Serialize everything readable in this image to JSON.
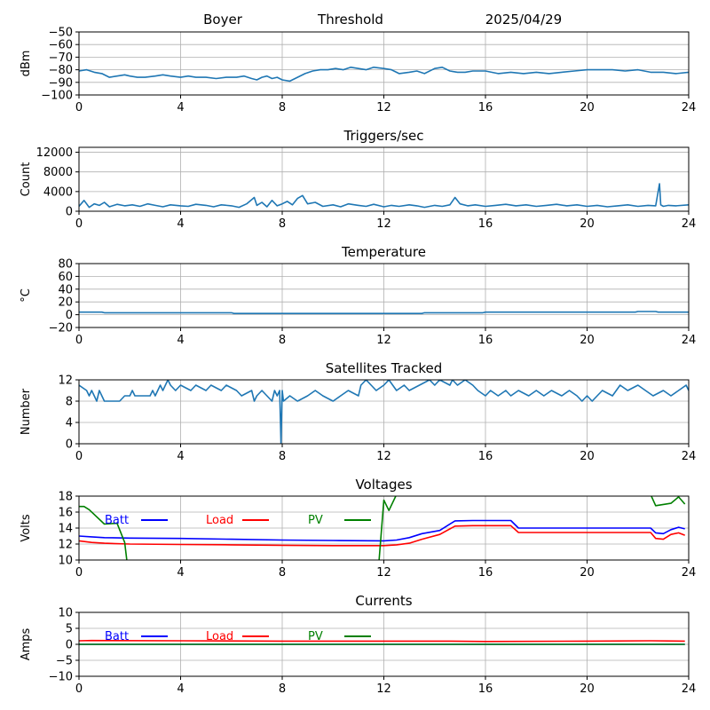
{
  "header": {
    "station": "Boyer",
    "mode": "Threshold",
    "date": "2025/04/29"
  },
  "chart_data": [
    {
      "type": "line",
      "title": "",
      "ylabel": "dBm",
      "ylim": [
        -100,
        -50
      ],
      "yticks": [
        -100,
        -90,
        -80,
        -70,
        -60,
        -50
      ],
      "xlim": [
        0,
        24
      ],
      "xticks": [
        0,
        4,
        8,
        12,
        16,
        20,
        24
      ],
      "grid": true,
      "series": [
        {
          "color": "#1f77b4",
          "x": [
            0,
            0.3,
            0.6,
            0.9,
            1.2,
            1.5,
            1.8,
            2.0,
            2.3,
            2.6,
            3.0,
            3.3,
            3.6,
            4.0,
            4.3,
            4.6,
            5.0,
            5.4,
            5.8,
            6.2,
            6.5,
            6.8,
            7.0,
            7.2,
            7.4,
            7.6,
            7.8,
            8.0,
            8.3,
            8.6,
            8.9,
            9.2,
            9.5,
            9.8,
            10.1,
            10.4,
            10.7,
            11.0,
            11.3,
            11.6,
            12.0,
            12.3,
            12.6,
            13.0,
            13.3,
            13.6,
            14.0,
            14.3,
            14.6,
            14.9,
            15.2,
            15.5,
            16.0,
            16.5,
            17.0,
            17.5,
            18.0,
            18.5,
            19.0,
            19.5,
            20.0,
            20.5,
            21.0,
            21.5,
            22.0,
            22.5,
            23.0,
            23.5,
            24.0
          ],
          "values": [
            -81,
            -80,
            -82,
            -83,
            -86,
            -85,
            -84,
            -85,
            -86,
            -86,
            -85,
            -84,
            -85,
            -86,
            -85,
            -86,
            -86,
            -87,
            -86,
            -86,
            -85,
            -87,
            -88,
            -86,
            -85,
            -87,
            -86,
            -88,
            -89,
            -86,
            -83,
            -81,
            -80,
            -80,
            -79,
            -80,
            -78,
            -79,
            -80,
            -78,
            -79,
            -80,
            -83,
            -82,
            -81,
            -83,
            -79,
            -78,
            -81,
            -82,
            -82,
            -81,
            -81,
            -83,
            -82,
            -83,
            -82,
            -83,
            -82,
            -81,
            -80,
            -80,
            -80,
            -81,
            -80,
            -82,
            -82,
            -83,
            -82
          ]
        }
      ]
    },
    {
      "type": "line",
      "title": "Triggers/sec",
      "ylabel": "Count",
      "ylim": [
        0,
        13000
      ],
      "yticks": [
        0,
        4000,
        8000,
        12000
      ],
      "xlim": [
        0,
        24
      ],
      "xticks": [
        0,
        4,
        8,
        12,
        16,
        20,
        24
      ],
      "grid": true,
      "series": [
        {
          "color": "#1f77b4",
          "x": [
            0,
            0.2,
            0.4,
            0.6,
            0.8,
            1.0,
            1.2,
            1.5,
            1.8,
            2.1,
            2.4,
            2.7,
            3.0,
            3.3,
            3.6,
            4.0,
            4.3,
            4.6,
            5.0,
            5.3,
            5.6,
            6.0,
            6.3,
            6.6,
            6.9,
            7.0,
            7.2,
            7.4,
            7.6,
            7.8,
            8.0,
            8.2,
            8.4,
            8.6,
            8.8,
            9.0,
            9.3,
            9.6,
            10.0,
            10.3,
            10.6,
            11.0,
            11.3,
            11.6,
            12.0,
            12.3,
            12.6,
            13.0,
            13.3,
            13.6,
            14.0,
            14.3,
            14.6,
            14.8,
            15.0,
            15.3,
            15.6,
            16.0,
            16.4,
            16.8,
            17.2,
            17.6,
            18.0,
            18.4,
            18.8,
            19.2,
            19.6,
            20.0,
            20.4,
            20.8,
            21.2,
            21.6,
            22.0,
            22.4,
            22.7,
            22.85,
            22.9,
            23.0,
            23.2,
            23.5,
            24.0
          ],
          "values": [
            1000,
            2200,
            800,
            1500,
            1200,
            1800,
            900,
            1400,
            1100,
            1300,
            1000,
            1500,
            1200,
            900,
            1300,
            1100,
            1000,
            1400,
            1200,
            900,
            1300,
            1100,
            800,
            1500,
            2800,
            1200,
            1800,
            900,
            2200,
            1100,
            1500,
            2000,
            1300,
            2600,
            3200,
            1500,
            1800,
            1000,
            1300,
            900,
            1500,
            1200,
            1000,
            1400,
            900,
            1200,
            1000,
            1300,
            1100,
            800,
            1200,
            1000,
            1300,
            2800,
            1500,
            1100,
            1300,
            1000,
            1200,
            1400,
            1100,
            1300,
            1000,
            1200,
            1400,
            1100,
            1300,
            1000,
            1200,
            900,
            1100,
            1300,
            1000,
            1200,
            1100,
            5600,
            1300,
            1000,
            1200,
            1100,
            1300
          ]
        }
      ]
    },
    {
      "type": "line",
      "title": "Temperature",
      "ylabel": "°C",
      "ylim": [
        -20,
        80
      ],
      "yticks": [
        -20,
        0,
        20,
        40,
        60,
        80
      ],
      "xlim": [
        0,
        24
      ],
      "xticks": [
        0,
        4,
        8,
        12,
        16,
        20,
        24
      ],
      "grid": true,
      "series": [
        {
          "color": "#1f77b4",
          "x": [
            0,
            0.9,
            1.0,
            6.0,
            6.1,
            13.5,
            13.6,
            15.9,
            16.0,
            21.9,
            22.0,
            22.7,
            22.8,
            24.0
          ],
          "values": [
            4,
            4,
            3,
            3,
            2,
            2,
            3,
            3,
            4,
            4,
            5,
            5,
            4,
            4
          ]
        }
      ]
    },
    {
      "type": "line",
      "title": "Satellites Tracked",
      "ylabel": "Number",
      "ylim": [
        0,
        12
      ],
      "yticks": [
        0,
        4,
        8,
        12
      ],
      "xlim": [
        0,
        24
      ],
      "xticks": [
        0,
        4,
        8,
        12,
        16,
        20,
        24
      ],
      "grid": true,
      "series": [
        {
          "color": "#1f77b4",
          "x": [
            0,
            0.3,
            0.4,
            0.5,
            0.6,
            0.7,
            0.8,
            1.0,
            1.4,
            1.6,
            1.8,
            2.0,
            2.1,
            2.2,
            2.8,
            2.9,
            3.0,
            3.2,
            3.3,
            3.5,
            3.6,
            3.8,
            4.0,
            4.4,
            4.6,
            5.0,
            5.2,
            5.6,
            5.8,
            6.2,
            6.4,
            6.8,
            6.9,
            7.0,
            7.2,
            7.4,
            7.6,
            7.7,
            7.8,
            7.9,
            7.95,
            8.0,
            8.05,
            8.3,
            8.6,
            9.0,
            9.3,
            9.6,
            10.0,
            10.3,
            10.6,
            11.0,
            11.1,
            11.3,
            11.5,
            11.7,
            12.0,
            12.2,
            12.5,
            12.8,
            13.0,
            13.4,
            13.8,
            14.0,
            14.2,
            14.6,
            14.7,
            14.9,
            15.2,
            15.5,
            15.7,
            16.0,
            16.2,
            16.5,
            16.8,
            17.0,
            17.3,
            17.7,
            18.0,
            18.3,
            18.6,
            19.0,
            19.3,
            19.6,
            19.8,
            20.0,
            20.2,
            20.4,
            20.6,
            21.0,
            21.3,
            21.6,
            22.0,
            22.3,
            22.6,
            23.0,
            23.3,
            23.6,
            23.9,
            24.0
          ],
          "values": [
            11,
            10,
            9,
            10,
            9,
            8,
            10,
            8,
            8,
            8,
            9,
            9,
            10,
            9,
            9,
            10,
            9,
            11,
            10,
            12,
            11,
            10,
            11,
            10,
            11,
            10,
            11,
            10,
            11,
            10,
            9,
            10,
            8,
            9,
            10,
            9,
            8,
            10,
            9,
            10,
            0,
            10,
            8,
            9,
            8,
            9,
            10,
            9,
            8,
            9,
            10,
            9,
            11,
            12,
            11,
            10,
            11,
            12,
            10,
            11,
            10,
            11,
            12,
            11,
            12,
            11,
            12,
            11,
            12,
            11,
            10,
            9,
            10,
            9,
            10,
            9,
            10,
            9,
            10,
            9,
            10,
            9,
            10,
            9,
            8,
            9,
            8,
            9,
            10,
            9,
            11,
            10,
            11,
            10,
            9,
            10,
            9,
            10,
            11,
            10
          ]
        }
      ]
    },
    {
      "type": "line",
      "title": "Voltages",
      "ylabel": "Volts",
      "ylim": [
        10,
        18
      ],
      "yticks": [
        10,
        12,
        14,
        16,
        18
      ],
      "xlim": [
        0,
        24
      ],
      "xticks": [
        0,
        4,
        8,
        12,
        16,
        20,
        24
      ],
      "grid": true,
      "legend": "top-left",
      "series": [
        {
          "name": "Batt",
          "color": "#0000ff",
          "x": [
            0,
            0.5,
            1,
            2,
            4,
            6,
            8,
            10,
            12,
            12.5,
            13,
            13.5,
            14.2,
            14.8,
            15.5,
            16,
            17,
            17.3,
            18,
            20,
            22,
            22.5,
            22.7,
            23,
            23.3,
            23.6,
            23.85
          ],
          "values": [
            13.0,
            12.9,
            12.8,
            12.75,
            12.7,
            12.6,
            12.5,
            12.45,
            12.4,
            12.5,
            12.8,
            13.3,
            13.7,
            14.9,
            14.95,
            14.95,
            14.95,
            14.0,
            14.0,
            14.0,
            14.0,
            14.0,
            13.4,
            13.3,
            13.8,
            14.1,
            13.9
          ]
        },
        {
          "name": "Load",
          "color": "#ff0000",
          "x": [
            0,
            0.5,
            1,
            2,
            4,
            6,
            8,
            10,
            12,
            12.5,
            13,
            13.5,
            14.2,
            14.8,
            15.5,
            16,
            17,
            17.3,
            18,
            20,
            22,
            22.5,
            22.7,
            23,
            23.3,
            23.6,
            23.85
          ],
          "values": [
            12.4,
            12.2,
            12.1,
            12.0,
            11.95,
            11.9,
            11.85,
            11.8,
            11.8,
            11.9,
            12.1,
            12.6,
            13.2,
            14.25,
            14.3,
            14.3,
            14.3,
            13.45,
            13.45,
            13.45,
            13.45,
            13.45,
            12.7,
            12.6,
            13.2,
            13.4,
            13.1
          ]
        },
        {
          "name": "PV",
          "color": "#008000",
          "x": [
            0,
            0.2,
            0.4,
            1.0,
            1.5,
            1.8,
            1.9,
            11.8,
            12.0,
            12.2,
            12.5,
            12.6,
            22.5,
            22.7,
            23.3,
            23.6,
            23.85
          ],
          "values": [
            16.7,
            16.7,
            16.3,
            14.5,
            14.6,
            12.2,
            9.5,
            9.5,
            17.5,
            16.2,
            18.2,
            18.2,
            18.2,
            16.8,
            17.1,
            17.9,
            17.0
          ]
        }
      ]
    },
    {
      "type": "line",
      "title": "Currents",
      "ylabel": "Amps",
      "ylim": [
        -10,
        10
      ],
      "yticks": [
        -10,
        -5,
        0,
        5,
        10
      ],
      "xlim": [
        0,
        24
      ],
      "xticks": [
        0,
        4,
        8,
        12,
        16,
        20,
        24
      ],
      "grid": true,
      "legend": "top-left",
      "series": [
        {
          "name": "Batt",
          "color": "#0000ff",
          "x": [
            0,
            4,
            8,
            12,
            16,
            20,
            23.85
          ],
          "values": [
            0.0,
            0.0,
            0.0,
            0.0,
            0.0,
            0.0,
            0.0
          ]
        },
        {
          "name": "Load",
          "color": "#ff0000",
          "x": [
            0,
            0.5,
            4,
            8,
            12,
            14.5,
            16,
            20,
            22.5,
            23.85
          ],
          "values": [
            1.1,
            1.2,
            1.1,
            1.0,
            1.0,
            1.0,
            0.9,
            1.0,
            1.1,
            1.0
          ]
        },
        {
          "name": "PV",
          "color": "#008000",
          "x": [
            0,
            4,
            8,
            12,
            16,
            20,
            23.85
          ],
          "values": [
            0.0,
            0.0,
            0.0,
            0.0,
            0.0,
            0.0,
            0.0
          ]
        }
      ]
    }
  ]
}
